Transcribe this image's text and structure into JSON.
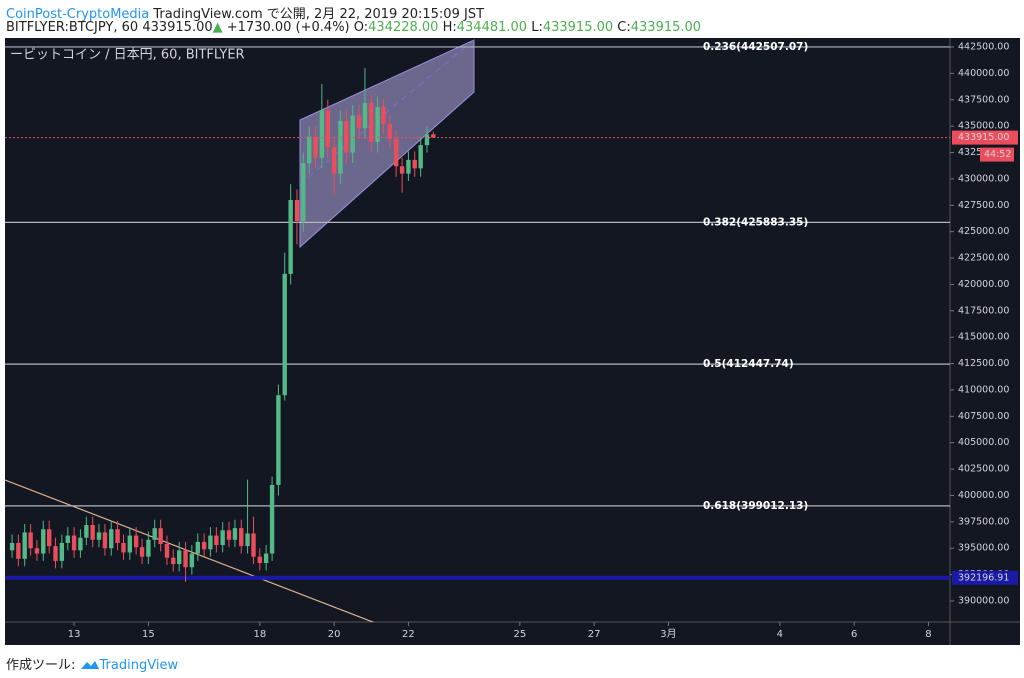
{
  "header": {
    "author": "CoinPost-CryptoMedia",
    "published": "TradingView.com で公開, 2月 22, 2019 20:15:09 JST",
    "symbol": "BITFLYER:BTCJPY, 60",
    "price": "433915.00",
    "arrow": "▲",
    "change": "+1730.00 (+0.4%)",
    "o_label": "O:",
    "o_value": "434228.00",
    "h_label": "H:",
    "h_value": "434481.00",
    "l_label": "L:",
    "l_value": "433915.00",
    "c_label": "C:",
    "c_value": "433915.00"
  },
  "footer": {
    "label": "作成ツール:",
    "brand": "TradingView"
  },
  "chart_data": {
    "type": "candlestick",
    "title": "ービットコイン / 日本円, 60, BITFLYER",
    "up_color": "#53b987",
    "down_color": "#eb4d5c",
    "x": [
      11.33,
      11.5,
      11.67,
      11.83,
      12,
      12.17,
      12.33,
      12.5,
      12.67,
      12.83,
      13,
      13.17,
      13.33,
      13.5,
      13.67,
      13.83,
      14,
      14.17,
      14.33,
      14.5,
      14.67,
      14.83,
      15,
      15.17,
      15.33,
      15.5,
      15.67,
      15.83,
      16,
      16.17,
      16.33,
      16.5,
      16.67,
      16.83,
      17,
      17.17,
      17.33,
      17.5,
      17.67,
      17.83,
      18,
      18.17,
      18.33,
      18.5,
      18.67,
      18.83,
      19,
      19.17,
      19.33,
      19.5,
      19.67,
      19.83,
      20,
      20.17,
      20.33,
      20.5,
      20.67,
      20.83,
      21,
      21.17,
      21.33,
      21.5,
      21.67,
      21.83,
      22,
      22.17,
      22.33,
      22.5,
      22.67
    ],
    "open": [
      394800,
      395500,
      394000,
      396500,
      395000,
      394500,
      396800,
      395200,
      393800,
      395500,
      396200,
      394800,
      396000,
      397200,
      395800,
      396500,
      395000,
      396800,
      395500,
      394600,
      396200,
      395100,
      394200,
      395800,
      396900,
      395400,
      394100,
      393500,
      394800,
      393200,
      394500,
      395600,
      394900,
      396200,
      395300,
      396700,
      395800,
      396900,
      395200,
      396400,
      394200,
      393600,
      394500,
      401000,
      409500,
      421000,
      428000,
      426000,
      431500,
      434000,
      432000,
      436500,
      433000,
      430500,
      435500,
      432500,
      436000,
      434800,
      437200,
      433500,
      436800,
      435200,
      433800,
      431200,
      430500,
      431800,
      431000,
      433200,
      434228
    ],
    "high": [
      396300,
      396300,
      397300,
      397300,
      395800,
      397600,
      397600,
      396000,
      396300,
      397000,
      397000,
      396800,
      398000,
      398000,
      397300,
      397300,
      397600,
      397600,
      396300,
      397000,
      397000,
      395900,
      396600,
      397700,
      397700,
      396200,
      394900,
      395600,
      395600,
      395300,
      396400,
      396400,
      397000,
      397000,
      397500,
      397500,
      397700,
      397700,
      401500,
      398000,
      395000,
      395300,
      401800,
      410500,
      423000,
      429500,
      429000,
      432500,
      435000,
      435000,
      439000,
      437500,
      434000,
      436500,
      436500,
      437000,
      437000,
      440500,
      438000,
      437800,
      437600,
      436000,
      434600,
      432000,
      432600,
      432600,
      434000,
      435000,
      434481
    ],
    "low": [
      394100,
      393300,
      393300,
      394300,
      393800,
      393800,
      394500,
      393100,
      393100,
      394800,
      394100,
      394100,
      395300,
      395100,
      395100,
      394300,
      394300,
      394800,
      393900,
      393900,
      394400,
      393500,
      393500,
      395100,
      394700,
      393400,
      392800,
      392800,
      391800,
      392500,
      393800,
      394200,
      394200,
      394600,
      394600,
      395100,
      395100,
      394500,
      394500,
      393500,
      392900,
      392900,
      393800,
      400000,
      409000,
      420000,
      423800,
      425000,
      430500,
      431000,
      431000,
      432000,
      428500,
      429500,
      431500,
      431500,
      433800,
      433800,
      432500,
      432500,
      434200,
      433000,
      430200,
      428700,
      429800,
      430200,
      430200,
      432500,
      433915
    ],
    "close": [
      395500,
      394000,
      396500,
      395000,
      394500,
      396800,
      395200,
      393800,
      395500,
      396200,
      394800,
      396000,
      397200,
      395800,
      396500,
      395000,
      396800,
      395500,
      394600,
      396200,
      395100,
      394200,
      395800,
      396900,
      395400,
      394100,
      393500,
      394800,
      393200,
      394500,
      395600,
      394900,
      396200,
      395300,
      396700,
      395800,
      396900,
      395200,
      396400,
      394200,
      393600,
      394500,
      401000,
      409500,
      421000,
      428000,
      426000,
      431500,
      434000,
      432000,
      436500,
      433000,
      430500,
      435500,
      432500,
      436000,
      434800,
      437200,
      433500,
      436800,
      435200,
      433800,
      431200,
      430500,
      431800,
      431000,
      433200,
      434228,
      433915
    ],
    "xlim": [
      11.14,
      36.58
    ],
    "xticks": [
      13,
      15,
      18,
      20,
      22,
      25,
      27,
      {
        "value": 29,
        "label": "3月"
      },
      {
        "value": 32,
        "label": "4"
      },
      {
        "value": 34,
        "label": "6"
      },
      {
        "value": 36,
        "label": "8"
      }
    ],
    "ylim": [
      388010,
      443353
    ],
    "yticks": [
      {
        "value": 390000,
        "label": "390000.00"
      },
      {
        "value": 392500,
        "label": "392500.00"
      },
      {
        "value": 395000,
        "label": "395000.00"
      },
      {
        "value": 397500,
        "label": "397500.00"
      },
      {
        "value": 400000,
        "label": "400000.00"
      },
      {
        "value": 402500,
        "label": "402500.00"
      },
      {
        "value": 405000,
        "label": "405000.00"
      },
      {
        "value": 407500,
        "label": "407500.00"
      },
      {
        "value": 410000,
        "label": "410000.00"
      },
      {
        "value": 412500,
        "label": "412500.00"
      },
      {
        "value": 415000,
        "label": "415000.00"
      },
      {
        "value": 417500,
        "label": "417500.00"
      },
      {
        "value": 420000,
        "label": "420000.00"
      },
      {
        "value": 422500,
        "label": "422500.00"
      },
      {
        "value": 425000,
        "label": "425000.00"
      },
      {
        "value": 427500,
        "label": "427500.00"
      },
      {
        "value": 430000,
        "label": "430000.00"
      },
      {
        "value": 432500,
        "label": "432500.00"
      },
      {
        "value": 435000,
        "label": "435000.00"
      },
      {
        "value": 437500,
        "label": "437500.00"
      },
      {
        "value": 440000,
        "label": "440000.00"
      },
      {
        "value": 442500,
        "label": "442500.00"
      }
    ],
    "fib_levels": [
      {
        "value": 442507.07,
        "label": "0.236(442507.07)"
      },
      {
        "value": 425883.35,
        "label": "0.382(425883.35)"
      },
      {
        "value": 412447.74,
        "label": "0.5(412447.74)"
      },
      {
        "value": 399012.13,
        "label": "0.618(399012.13)"
      }
    ],
    "last_price": {
      "value": 433915,
      "label": "433915.00"
    },
    "countdown": "44:52",
    "support_level": 392196.91,
    "grid": false
  }
}
